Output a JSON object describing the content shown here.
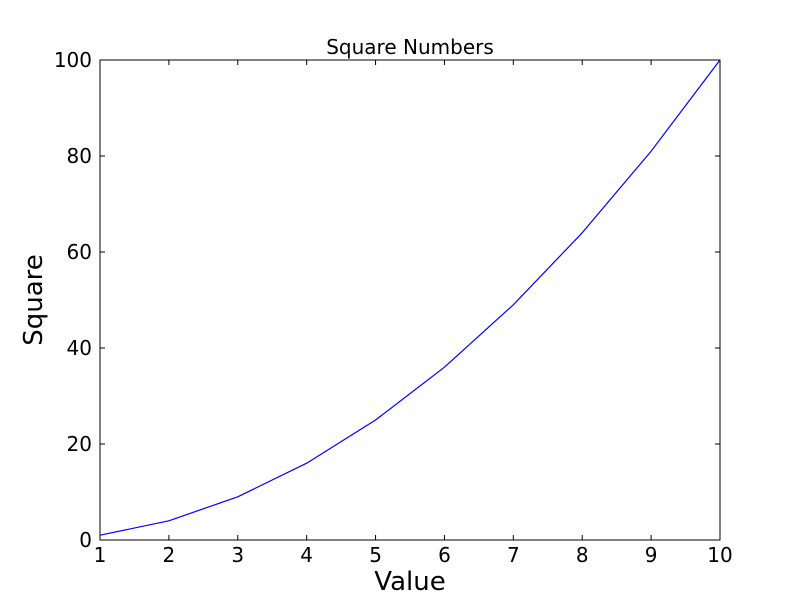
{
  "chart_data": {
    "type": "line",
    "title": "Square Numbers",
    "xlabel": "Value",
    "ylabel": "Square",
    "x": [
      1,
      2,
      3,
      4,
      5,
      6,
      7,
      8,
      9,
      10
    ],
    "y": [
      1,
      4,
      9,
      16,
      25,
      36,
      49,
      64,
      81,
      100
    ],
    "xlim": [
      1,
      10
    ],
    "ylim": [
      0,
      100
    ],
    "xticks": [
      1,
      2,
      3,
      4,
      5,
      6,
      7,
      8,
      9,
      10
    ],
    "yticks": [
      0,
      20,
      40,
      60,
      80,
      100
    ],
    "grid": false,
    "legend": null,
    "line_color": "#0000ff",
    "line_width": 1.2,
    "axis_color": "#000000",
    "background": "#ffffff",
    "tick_direction": "in"
  }
}
